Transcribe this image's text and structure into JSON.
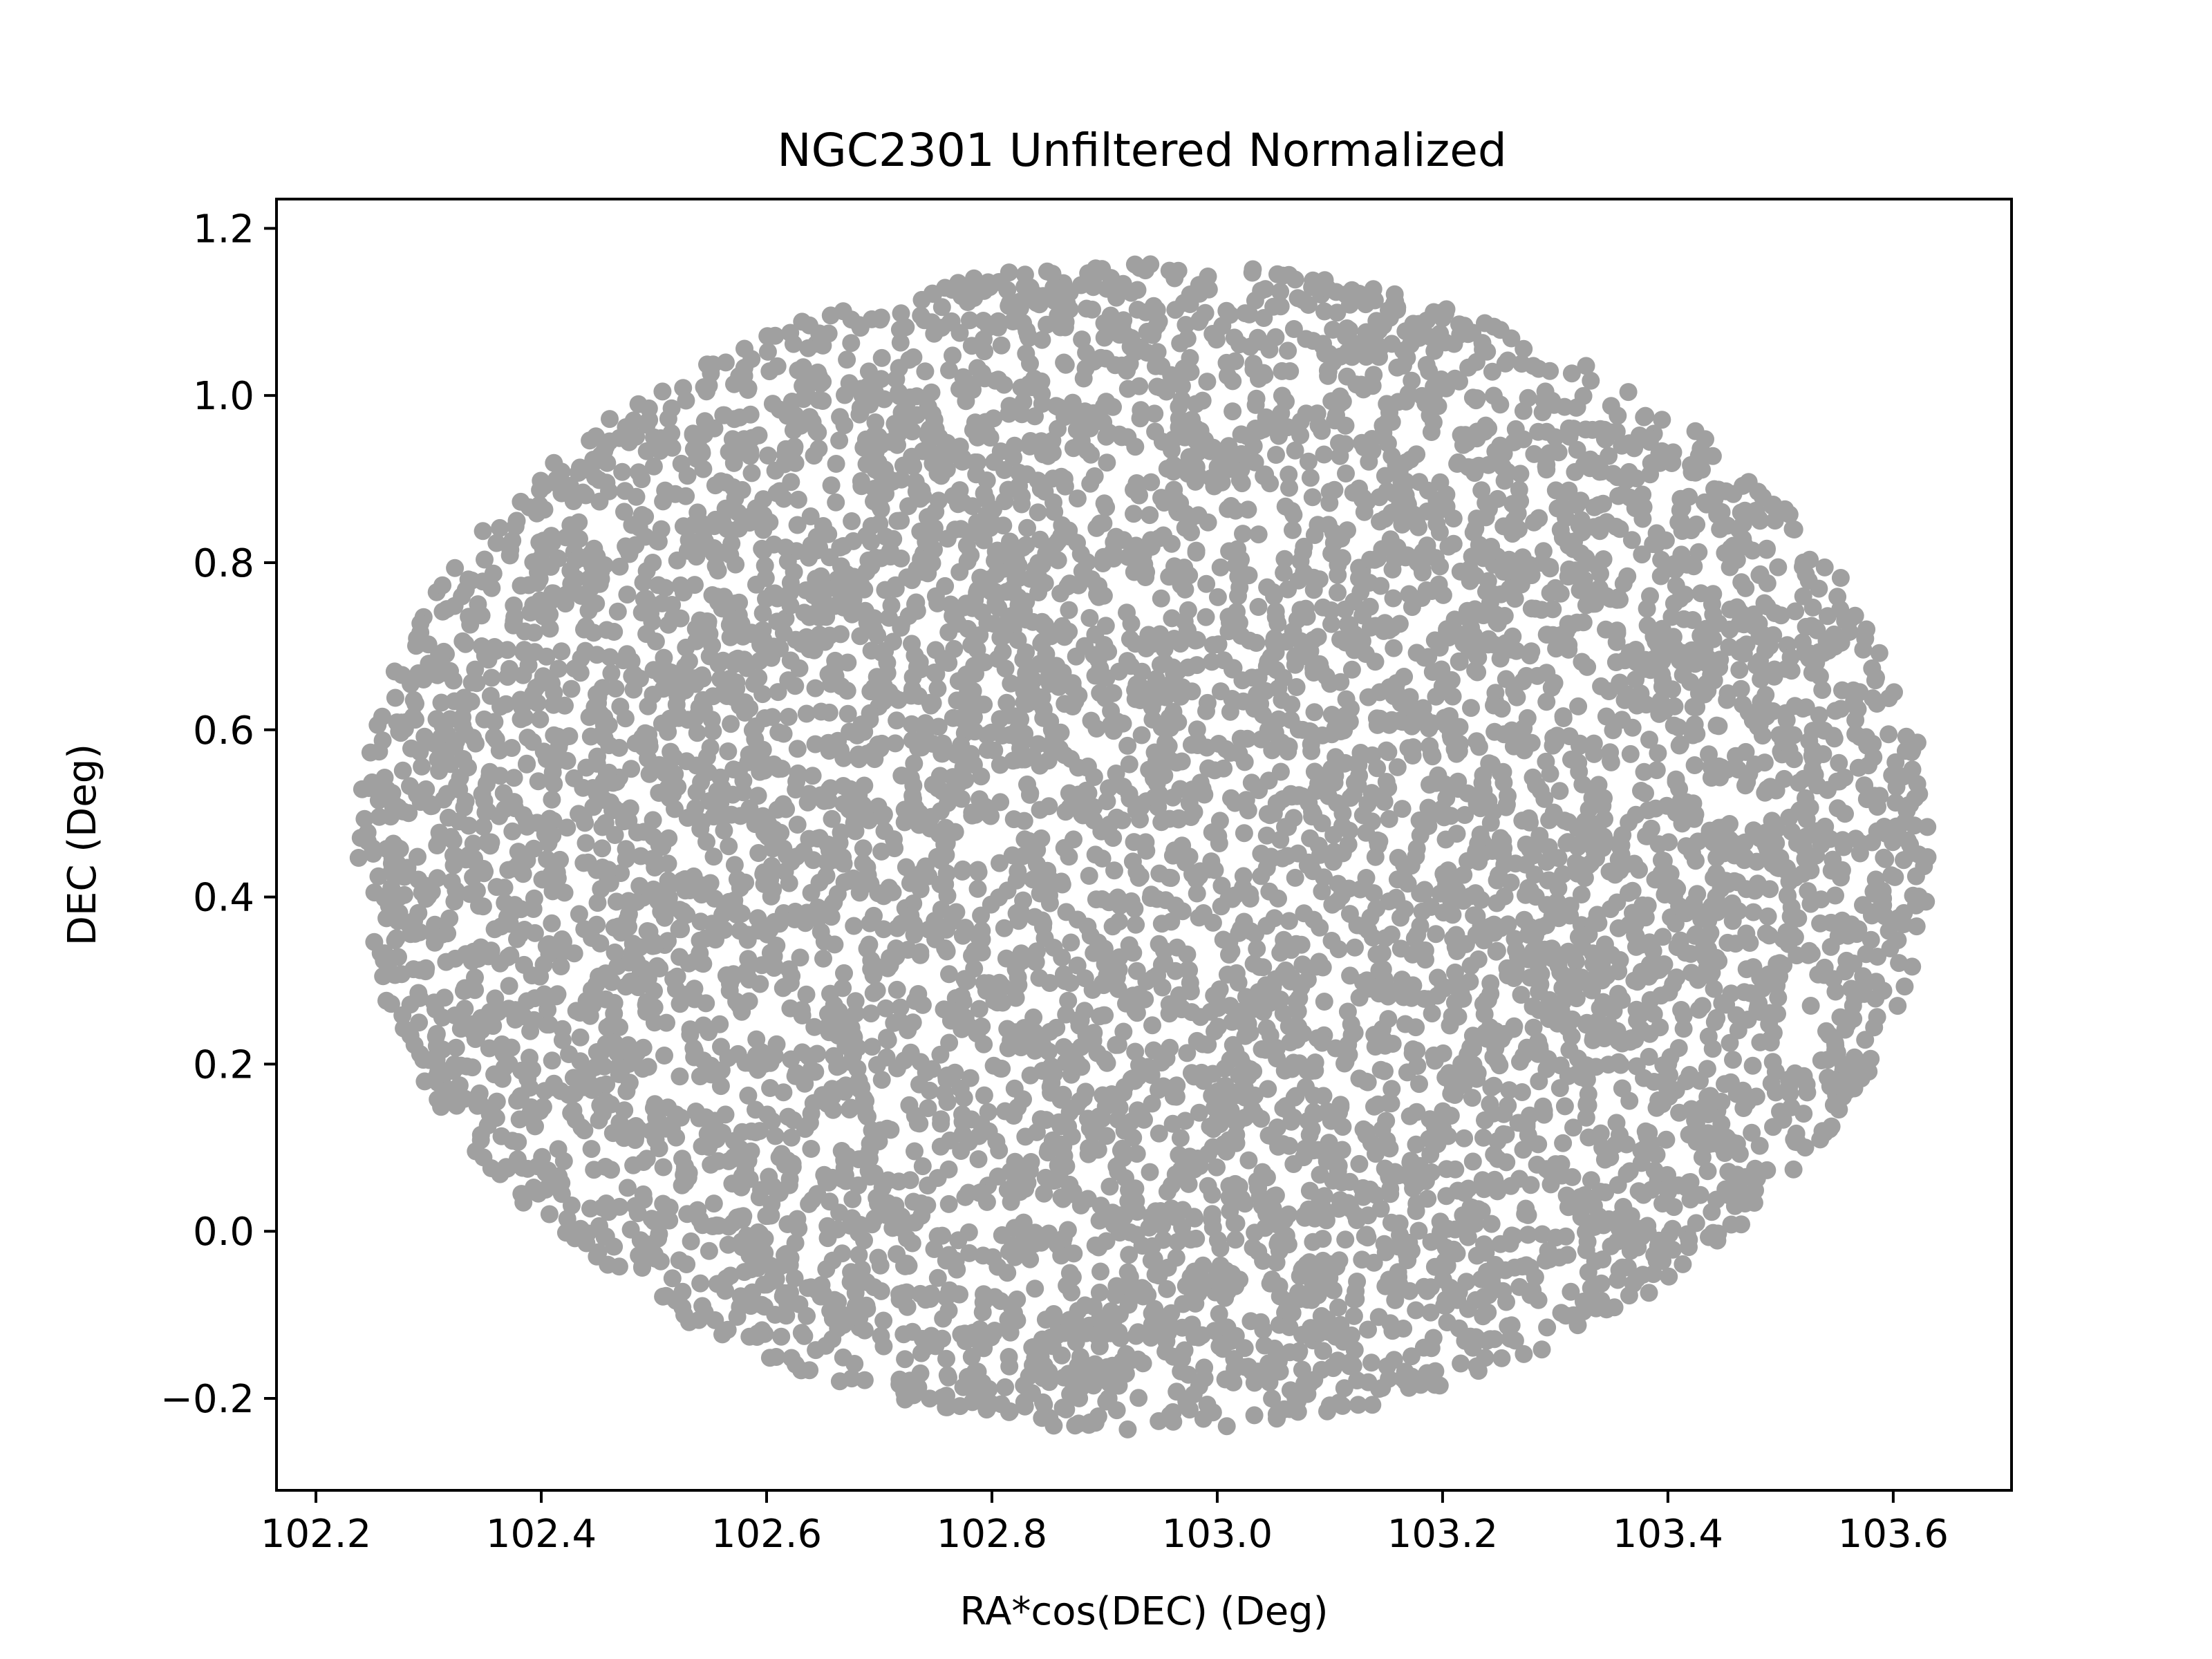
{
  "chart_data": {
    "type": "scatter",
    "title": "NGC2301 Unfiltered Normalized",
    "xlabel": "RA*cos(DEC) (Deg)",
    "ylabel": "DEC (Deg)",
    "xlim": [
      102.165,
      103.705
    ],
    "ylim": [
      -0.31,
      1.235
    ],
    "xticks": [
      102.2,
      102.4,
      102.6,
      102.8,
      103.0,
      103.2,
      103.4,
      103.6
    ],
    "xtick_labels": [
      "102.2",
      "102.4",
      "102.6",
      "102.8",
      "103.0",
      "103.2",
      "103.4",
      "103.6"
    ],
    "yticks": [
      -0.2,
      0.0,
      0.2,
      0.4,
      0.6,
      0.8,
      1.0,
      1.2
    ],
    "ytick_labels": [
      "−0.2",
      "0.0",
      "0.2",
      "0.4",
      "0.6",
      "0.8",
      "1.0",
      "1.2"
    ],
    "grid": false,
    "legend": "none",
    "series": [
      {
        "marker_color": "#a0a0a0",
        "distribution": "uniform disk of stars, 1.4° wide and 1.4° tall",
        "center": [
          102.935,
          0.46
        ],
        "radius_x": 0.698,
        "radius_y": 0.698
      }
    ]
  }
}
